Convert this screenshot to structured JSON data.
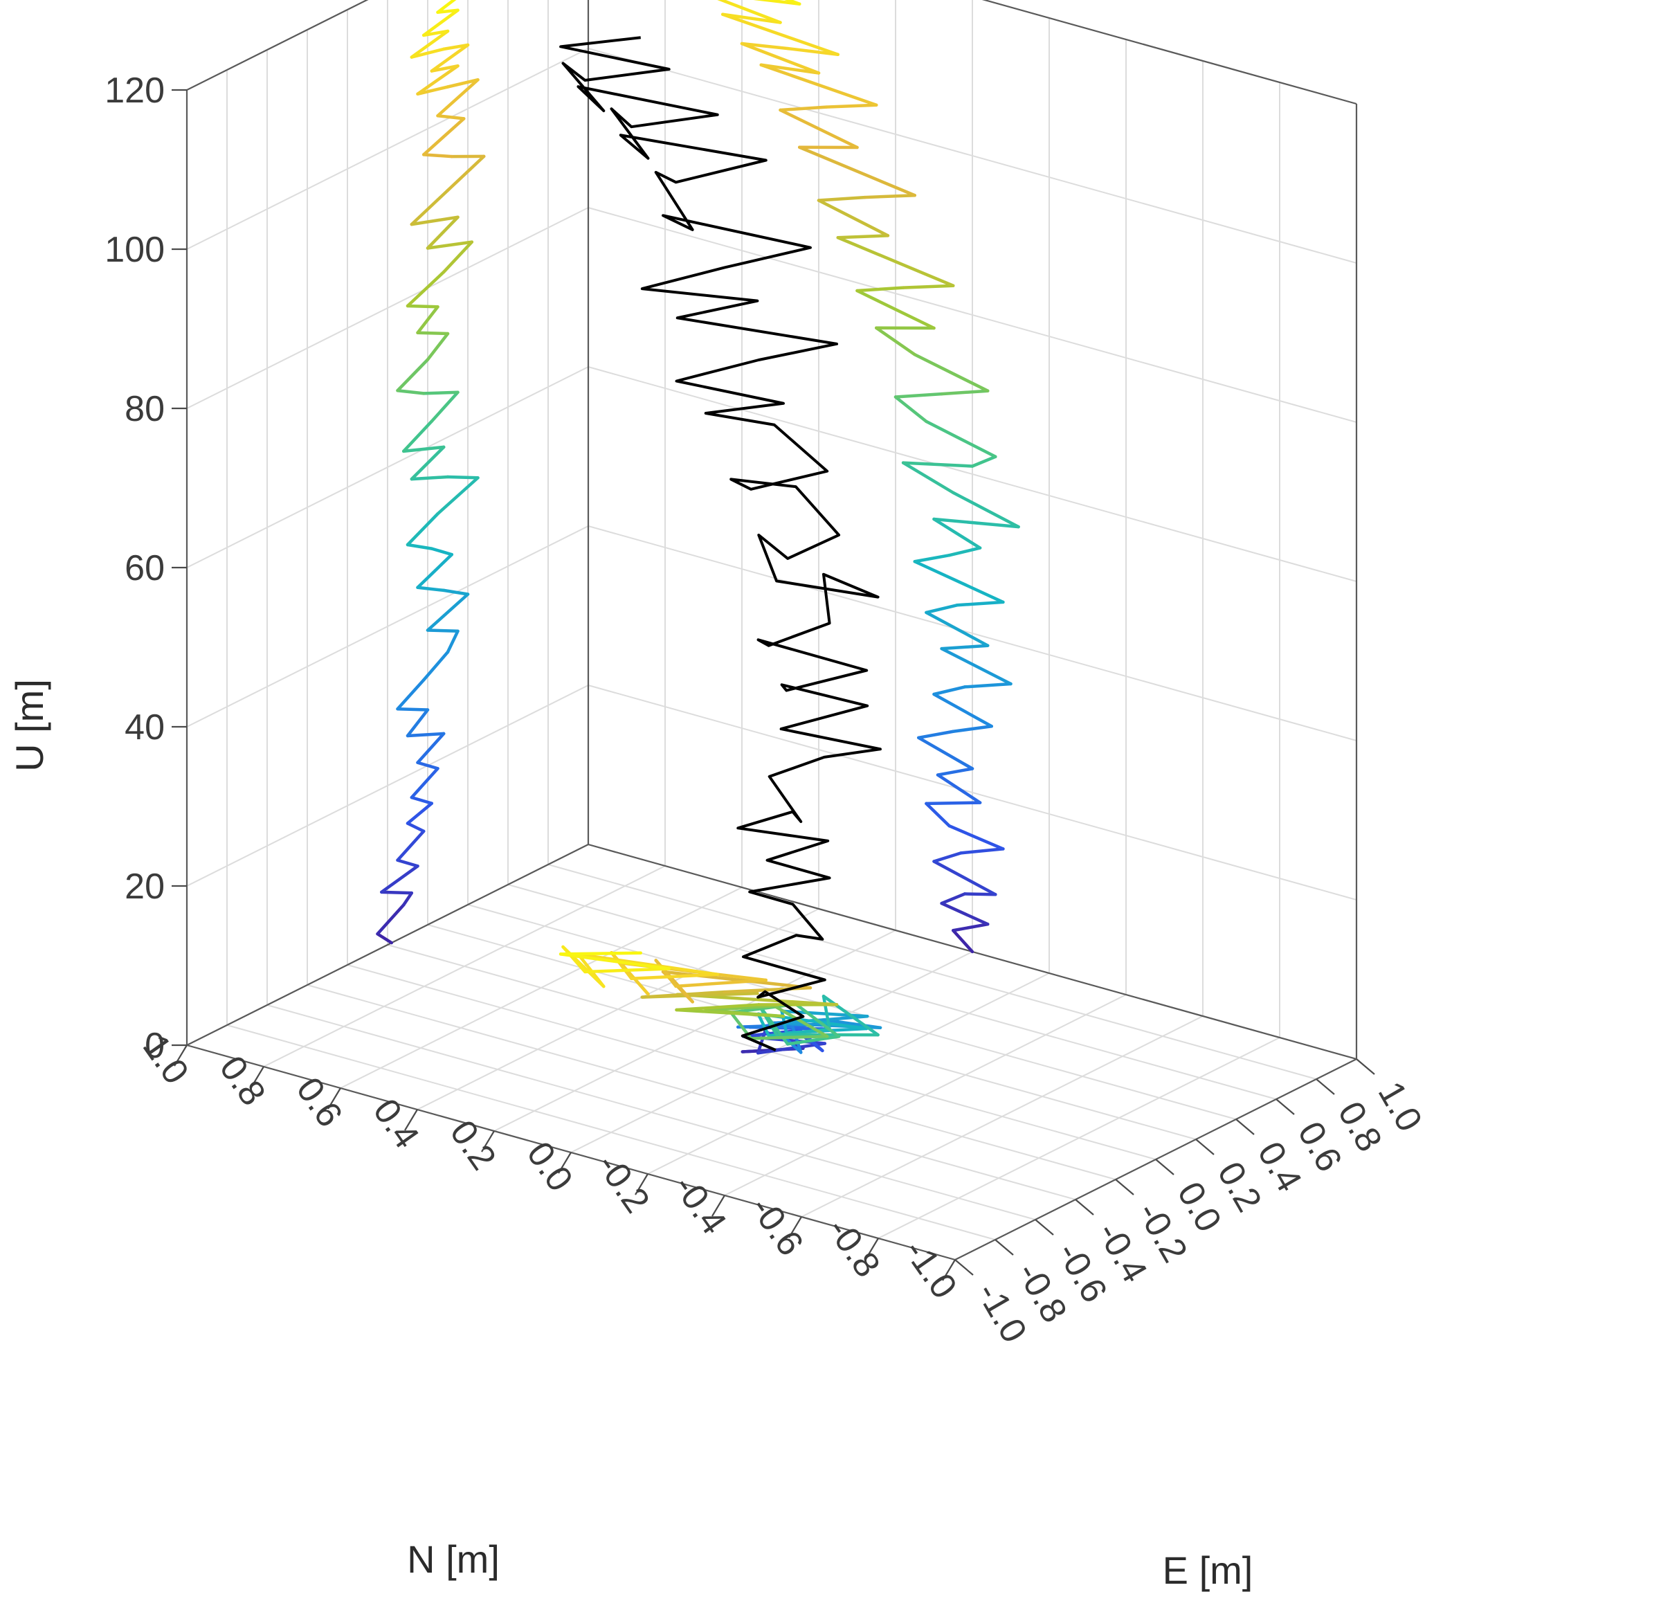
{
  "chart_data": {
    "type": "line",
    "subtype": "3d-trajectory-with-projections",
    "title": "",
    "axes": {
      "x": {
        "label": "E [m]",
        "range": [
          -1.0,
          1.0
        ],
        "ticks": [
          -1.0,
          -0.8,
          -0.6,
          -0.4,
          -0.2,
          0.0,
          0.2,
          0.4,
          0.6,
          0.8,
          1.0
        ],
        "tick_labels": [
          "-1.0",
          "-0.8",
          "-0.6",
          "-0.4",
          "-0.2",
          "0.0",
          "0.2",
          "0.4",
          "0.6",
          "0.8",
          "1.0"
        ]
      },
      "y": {
        "label": "N [m]",
        "range": [
          -1.0,
          1.0
        ],
        "ticks": [
          -1.0,
          -0.8,
          -0.6,
          -0.4,
          -0.2,
          0.0,
          0.2,
          0.4,
          0.6,
          0.8,
          1.0
        ],
        "tick_labels": [
          "-1.0",
          "-0.8",
          "-0.6",
          "-0.4",
          "-0.2",
          "0.0",
          "0.2",
          "0.4",
          "0.6",
          "0.8",
          "1.0"
        ]
      },
      "z": {
        "label": "U [m]",
        "range": [
          0,
          120
        ],
        "ticks": [
          0,
          20,
          40,
          60,
          80,
          100,
          120
        ],
        "tick_labels": [
          "0",
          "20",
          "40",
          "60",
          "80",
          "100",
          "120"
        ]
      }
    },
    "grid": true,
    "legend": "none",
    "colormap": [
      "#3e26a8",
      "#2e55e8",
      "#1f8ce0",
      "#16b6c2",
      "#44c58a",
      "#a6c834",
      "#e3b63c",
      "#f6d52a",
      "#f9fb0e"
    ],
    "trajectory_color": "#000000",
    "trajectory": {
      "e": [
        0.02,
        -0.05,
        0.08,
        0.12,
        -0.03,
        0.15,
        0.05,
        0.18,
        0.1,
        0.22,
        0.12,
        0.25,
        0.15,
        0.28,
        0.1,
        0.2,
        0.05,
        0.18,
        0.3,
        0.35,
        0.2,
        0.4,
        0.28,
        0.15,
        0.32,
        0.22,
        0.1,
        0.25,
        0.45,
        0.3,
        0.12,
        0.28,
        0.08,
        0.22,
        0.35,
        0.18,
        0.05,
        0.2,
        0.3,
        0.15,
        0.25,
        0.1,
        0.28,
        0.42,
        0.2,
        0.35,
        0.12,
        0.3,
        0.48,
        0.32,
        0.18,
        0.38,
        0.25,
        0.45,
        0.3,
        0.15,
        0.35,
        0.22,
        0.4,
        0.28,
        0.12,
        0.3,
        0.18,
        0.35,
        0.25,
        0.4
      ],
      "n": [
        0.0,
        0.05,
        -0.04,
        0.08,
        0.02,
        -0.06,
        0.1,
        0.03,
        -0.08,
        0.06,
        0.12,
        -0.02,
        0.09,
        0.0,
        0.14,
        0.05,
        -0.05,
        0.1,
        0.02,
        -0.1,
        0.08,
        -0.04,
        0.12,
        0.04,
        -0.08,
        0.15,
        0.06,
        -0.02,
        0.1,
        -0.12,
        0.05,
        0.18,
        0.0,
        -0.06,
        0.12,
        0.2,
        0.08,
        -0.04,
        0.15,
        0.25,
        0.1,
        0.3,
        0.18,
        0.05,
        0.35,
        0.22,
        0.4,
        0.28,
        0.15,
        0.45,
        0.3,
        0.5,
        0.38,
        0.25,
        0.55,
        0.4,
        0.6,
        0.48,
        0.35,
        0.65,
        0.5,
        0.7,
        0.58,
        0.45,
        0.68,
        0.55
      ],
      "u": [
        0,
        2,
        4,
        5,
        7,
        8,
        10,
        12,
        14,
        15,
        17,
        19,
        21,
        23,
        25,
        27,
        29,
        31,
        33,
        35,
        37,
        39,
        41,
        43,
        45,
        47,
        49,
        51,
        53,
        55,
        57,
        59,
        61,
        63,
        65,
        67,
        69,
        71,
        73,
        75,
        77,
        79,
        81,
        83,
        85,
        87,
        89,
        91,
        93,
        95,
        97,
        99,
        101,
        103,
        104,
        105,
        106,
        107,
        108,
        109,
        110,
        111,
        112,
        113,
        114,
        115
      ]
    }
  }
}
